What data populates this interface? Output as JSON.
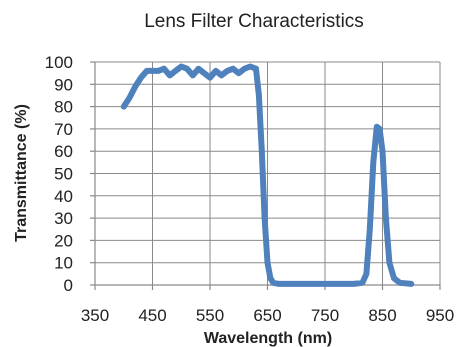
{
  "chart_data": {
    "type": "line",
    "title": "Lens Filter Characteristics",
    "xlabel": "Wavelength (nm)",
    "ylabel": "Transmittance (%)",
    "xlim": [
      350,
      950
    ],
    "ylim": [
      0,
      100
    ],
    "xticks": [
      350,
      450,
      550,
      650,
      750,
      850,
      950
    ],
    "yticks": [
      0,
      10,
      20,
      30,
      40,
      50,
      60,
      70,
      80,
      90,
      100
    ],
    "grid": true,
    "series_color": "#4f81bd",
    "series": [
      {
        "x": [
          400,
          410,
          420,
          430,
          440,
          450,
          460,
          470,
          480,
          490,
          500,
          510,
          520,
          530,
          540,
          550,
          560,
          570,
          580,
          590,
          600,
          610,
          620,
          630,
          635,
          640,
          645,
          650,
          655,
          660,
          670,
          700,
          750,
          800,
          815,
          822,
          828,
          834,
          840,
          845,
          850,
          856,
          862,
          870,
          880,
          900
        ],
        "y": [
          80,
          84,
          89,
          93,
          96,
          96,
          96,
          97,
          94,
          96,
          98,
          97,
          94,
          97,
          95,
          93,
          96,
          94,
          96,
          97,
          95,
          97,
          98,
          97,
          85,
          60,
          30,
          10,
          3,
          1,
          0.5,
          0.5,
          0.5,
          0.5,
          1,
          5,
          25,
          55,
          71,
          70,
          60,
          30,
          10,
          3,
          1,
          0.5
        ]
      }
    ]
  }
}
